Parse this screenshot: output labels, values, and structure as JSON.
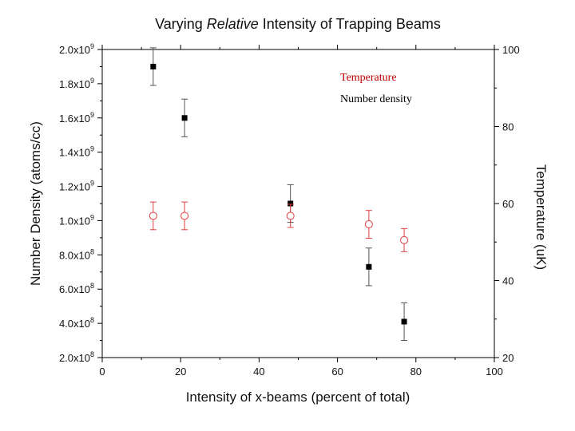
{
  "chart_data": {
    "type": "scatter",
    "title_prefix": "Varying ",
    "title_italic": "Relative",
    "title_suffix": " Intensity of Trapping Beams",
    "xlabel": "Intensity of x-beams (percent of total)",
    "ylabel": "Number Density (atoms/cc)",
    "y2label": "Temperature (uK)",
    "xlim": [
      0,
      100
    ],
    "ylim": [
      0.2,
      2.0
    ],
    "y2lim": [
      20,
      100
    ],
    "x_ticks": [
      {
        "value": 0,
        "label": "0"
      },
      {
        "value": 20,
        "label": "20"
      },
      {
        "value": 40,
        "label": "40"
      },
      {
        "value": 60,
        "label": "60"
      },
      {
        "value": 80,
        "label": "80"
      },
      {
        "value": 100,
        "label": "100"
      }
    ],
    "y_ticks": [
      {
        "value": 0.2,
        "mant": "2.0x10",
        "exp": "8"
      },
      {
        "value": 0.4,
        "mant": "4.0x10",
        "exp": "8"
      },
      {
        "value": 0.6,
        "mant": "6.0x10",
        "exp": "8"
      },
      {
        "value": 0.8,
        "mant": "8.0x10",
        "exp": "8"
      },
      {
        "value": 1.0,
        "mant": "1.0x10",
        "exp": "9"
      },
      {
        "value": 1.2,
        "mant": "1.2x10",
        "exp": "9"
      },
      {
        "value": 1.4,
        "mant": "1.4x10",
        "exp": "9"
      },
      {
        "value": 1.6,
        "mant": "1.6x10",
        "exp": "9"
      },
      {
        "value": 1.8,
        "mant": "1.8x10",
        "exp": "9"
      },
      {
        "value": 2.0,
        "mant": "2.0x10",
        "exp": "9"
      }
    ],
    "y2_ticks": [
      {
        "value": 20,
        "label": "20"
      },
      {
        "value": 40,
        "label": "40"
      },
      {
        "value": 60,
        "label": "60"
      },
      {
        "value": 80,
        "label": "80"
      },
      {
        "value": 100,
        "label": "100"
      }
    ],
    "series": [
      {
        "name": "Number density",
        "axis": "left",
        "units_note": "values in units of 1e9 atoms/cc",
        "marker": "filled-square",
        "color": "#000000",
        "x": [
          13,
          21,
          48,
          68,
          77
        ],
        "y": [
          1.9,
          1.6,
          1.1,
          0.73,
          0.41
        ],
        "err": [
          0.11,
          0.11,
          0.11,
          0.11,
          0.11
        ]
      },
      {
        "name": "Temperature",
        "axis": "right",
        "marker": "open-circle",
        "color": "#e04040",
        "x": [
          13,
          21,
          48,
          68,
          77
        ],
        "y": [
          56.8,
          56.8,
          56.8,
          54.6,
          50.5
        ],
        "err": [
          3.6,
          3.6,
          3.0,
          3.6,
          3.0
        ]
      }
    ],
    "legend": [
      {
        "label": "Temperature",
        "color": "#c00000"
      },
      {
        "label": "Number density",
        "color": "#000000"
      }
    ],
    "legend_position": "top-right"
  }
}
